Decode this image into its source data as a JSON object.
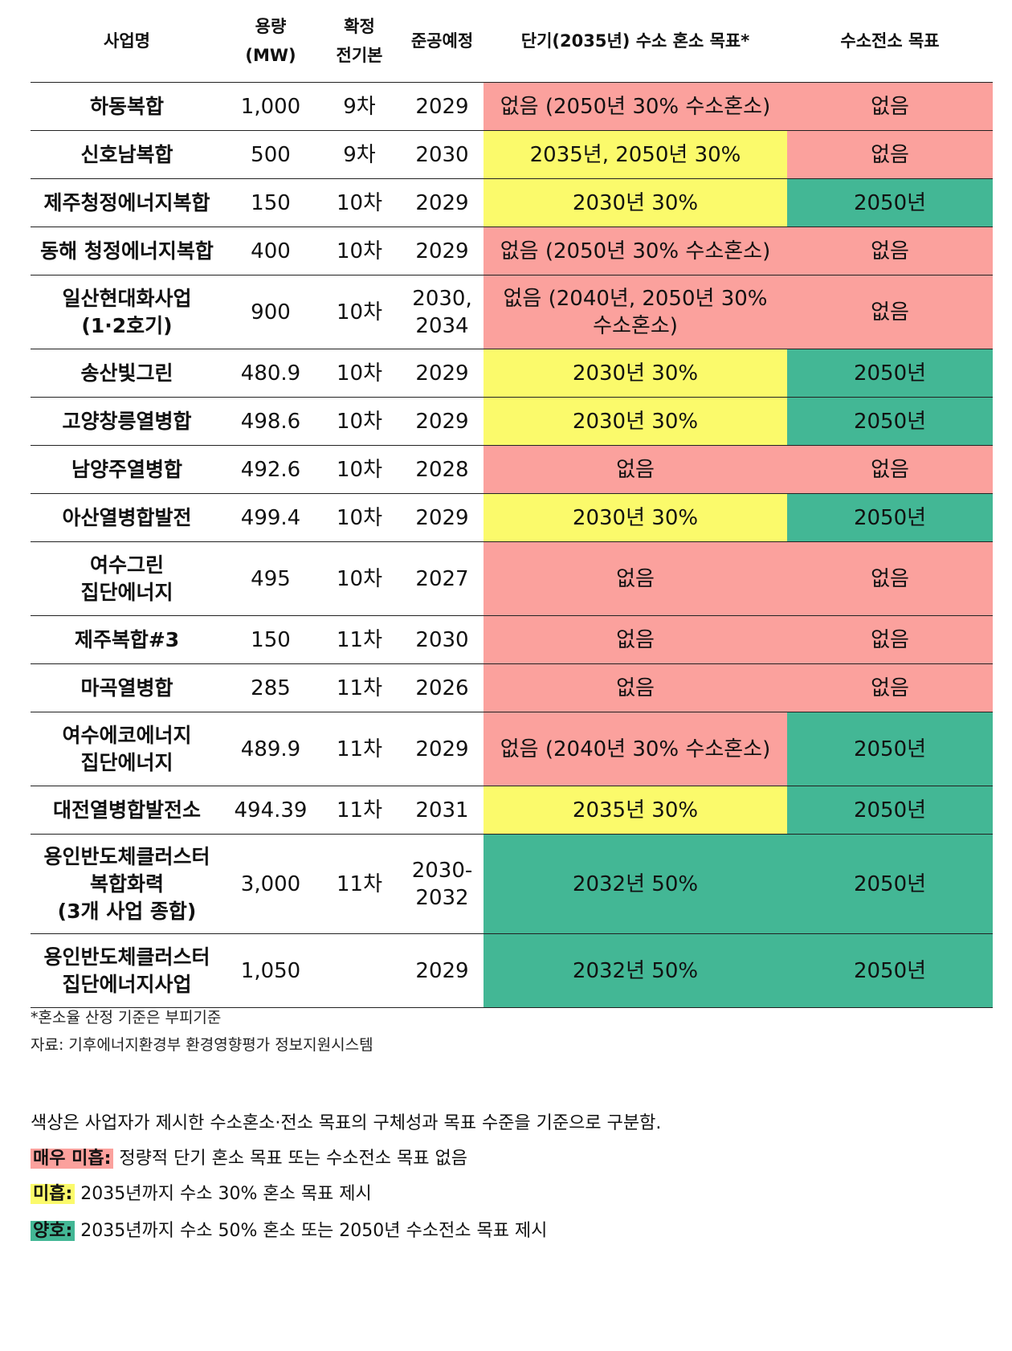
{
  "header": {
    "name": "사업명",
    "capacity": "용량\n(MW)",
    "plan": "확정\n전기본",
    "year": "준공예정",
    "short_term": "단기(2035년) 수소 혼소 목표*",
    "full": "수소전소 목표"
  },
  "colors": {
    "very_poor": "#fba19d",
    "poor": "#fbfa6b",
    "good": "#43b795"
  },
  "rows": [
    {
      "name": "하동복합",
      "cap": "1,000",
      "plan": "9차",
      "year": "2029",
      "st": "없음 (2050년 30% 수소혼소)",
      "st_c": "r",
      "full": "없음",
      "full_c": "r"
    },
    {
      "name": "신호남복합",
      "cap": "500",
      "plan": "9차",
      "year": "2030",
      "st": "2035년, 2050년 30%",
      "st_c": "y",
      "full": "없음",
      "full_c": "r"
    },
    {
      "name": "제주청정에너지복합",
      "cap": "150",
      "plan": "10차",
      "year": "2029",
      "st": "2030년 30%",
      "st_c": "y",
      "full": "2050년",
      "full_c": "g"
    },
    {
      "name": "동해 청정에너지복합",
      "cap": "400",
      "plan": "10차",
      "year": "2029",
      "st": "없음 (2050년 30% 수소혼소)",
      "st_c": "r",
      "full": "없음",
      "full_c": "r"
    },
    {
      "name": "일산현대화사업\n(1·2호기)",
      "cap": "900",
      "plan": "10차",
      "year": "2030,\n2034",
      "st": "없음 (2040년, 2050년 30%\n수소혼소)",
      "st_c": "r",
      "full": "없음",
      "full_c": "r"
    },
    {
      "name": "송산빛그린",
      "cap": "480.9",
      "plan": "10차",
      "year": "2029",
      "st": "2030년 30%",
      "st_c": "y",
      "full": "2050년",
      "full_c": "g"
    },
    {
      "name": "고양창릉열병합",
      "cap": "498.6",
      "plan": "10차",
      "year": "2029",
      "st": "2030년 30%",
      "st_c": "y",
      "full": "2050년",
      "full_c": "g"
    },
    {
      "name": "남양주열병합",
      "cap": "492.6",
      "plan": "10차",
      "year": "2028",
      "st": "없음",
      "st_c": "r",
      "full": "없음",
      "full_c": "r"
    },
    {
      "name": "아산열병합발전",
      "cap": "499.4",
      "plan": "10차",
      "year": "2029",
      "st": "2030년 30%",
      "st_c": "y",
      "full": "2050년",
      "full_c": "g"
    },
    {
      "name": "여수그린\n집단에너지",
      "cap": "495",
      "plan": "10차",
      "year": "2027",
      "st": "없음",
      "st_c": "r",
      "full": "없음",
      "full_c": "r"
    },
    {
      "name": "제주복합#3",
      "cap": "150",
      "plan": "11차",
      "year": "2030",
      "st": "없음",
      "st_c": "r",
      "full": "없음",
      "full_c": "r"
    },
    {
      "name": "마곡열병합",
      "cap": "285",
      "plan": "11차",
      "year": "2026",
      "st": "없음",
      "st_c": "r",
      "full": "없음",
      "full_c": "r"
    },
    {
      "name": "여수에코에너지\n집단에너지",
      "cap": "489.9",
      "plan": "11차",
      "year": "2029",
      "st": "없음 (2040년 30% 수소혼소)",
      "st_c": "r",
      "full": "2050년",
      "full_c": "g"
    },
    {
      "name": "대전열병합발전소",
      "cap": "494.39",
      "plan": "11차",
      "year": "2031",
      "st": "2035년 30%",
      "st_c": "y",
      "full": "2050년",
      "full_c": "g"
    },
    {
      "name": "용인반도체클러스터\n복합화력\n(3개 사업 종합)",
      "cap": "3,000",
      "plan": "11차",
      "year": "2030-\n2032",
      "st": "2032년 50%",
      "st_c": "g",
      "full": "2050년",
      "full_c": "g"
    },
    {
      "name": "용인반도체클러스터\n집단에너지사업",
      "cap": "1,050",
      "plan": "",
      "year": "2029",
      "st": "2032년 50%",
      "st_c": "g",
      "full": "2050년",
      "full_c": "g"
    }
  ],
  "notes": {
    "footnote": "*혼소율 산정 기준은 부피기준",
    "source": "자료: 기후에너지환경부 환경영향평가 정보지원시스템"
  },
  "legend": {
    "intro": "색상은 사업자가 제시한 수소혼소·전소 목표의 구체성과 목표 수준을 기준으로 구분함.",
    "very_poor_label": "매우 미흡:",
    "very_poor_text": " 정량적 단기 혼소 목표 또는 수소전소 목표 없음",
    "poor_label": "미흡:",
    "poor_text": " 2035년까지 수소 30% 혼소 목표 제시",
    "good_label": "양호:",
    "good_text": " 2035년까지 수소 50% 혼소 또는 2050년 수소전소 목표 제시"
  }
}
